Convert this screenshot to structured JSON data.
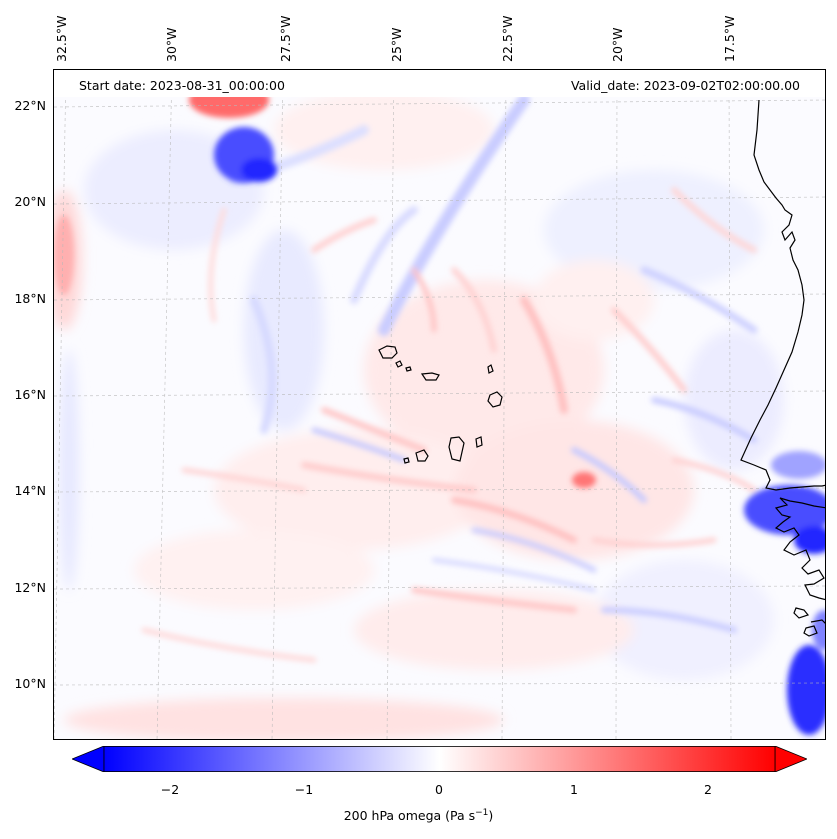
{
  "header": {
    "start_date": "Start date: 2023-08-31_00:00:00",
    "valid_date": "Valid_date: 2023-09-02T02:00:00.00"
  },
  "axes": {
    "longitude_labels": [
      "32.5°W",
      "30°W",
      "27.5°W",
      "25°W",
      "22.5°W",
      "20°W",
      "17.5°W"
    ],
    "latitude_labels": [
      "22°N",
      "20°N",
      "18°N",
      "16°N",
      "14°N",
      "12°N",
      "10°N"
    ],
    "gridlines": true
  },
  "colorbar": {
    "ticks": [
      "−2",
      "−1",
      "0",
      "1",
      "2"
    ],
    "label": "200 hPa omega (Pa s",
    "label_sup": "−1",
    "label_end": ")",
    "range": [
      -2.6,
      2.6
    ],
    "cmap": "bwr",
    "extend": "both",
    "colors": {
      "low": "#0000ff",
      "mid": "#ffffff",
      "high": "#ff0000"
    }
  }
}
